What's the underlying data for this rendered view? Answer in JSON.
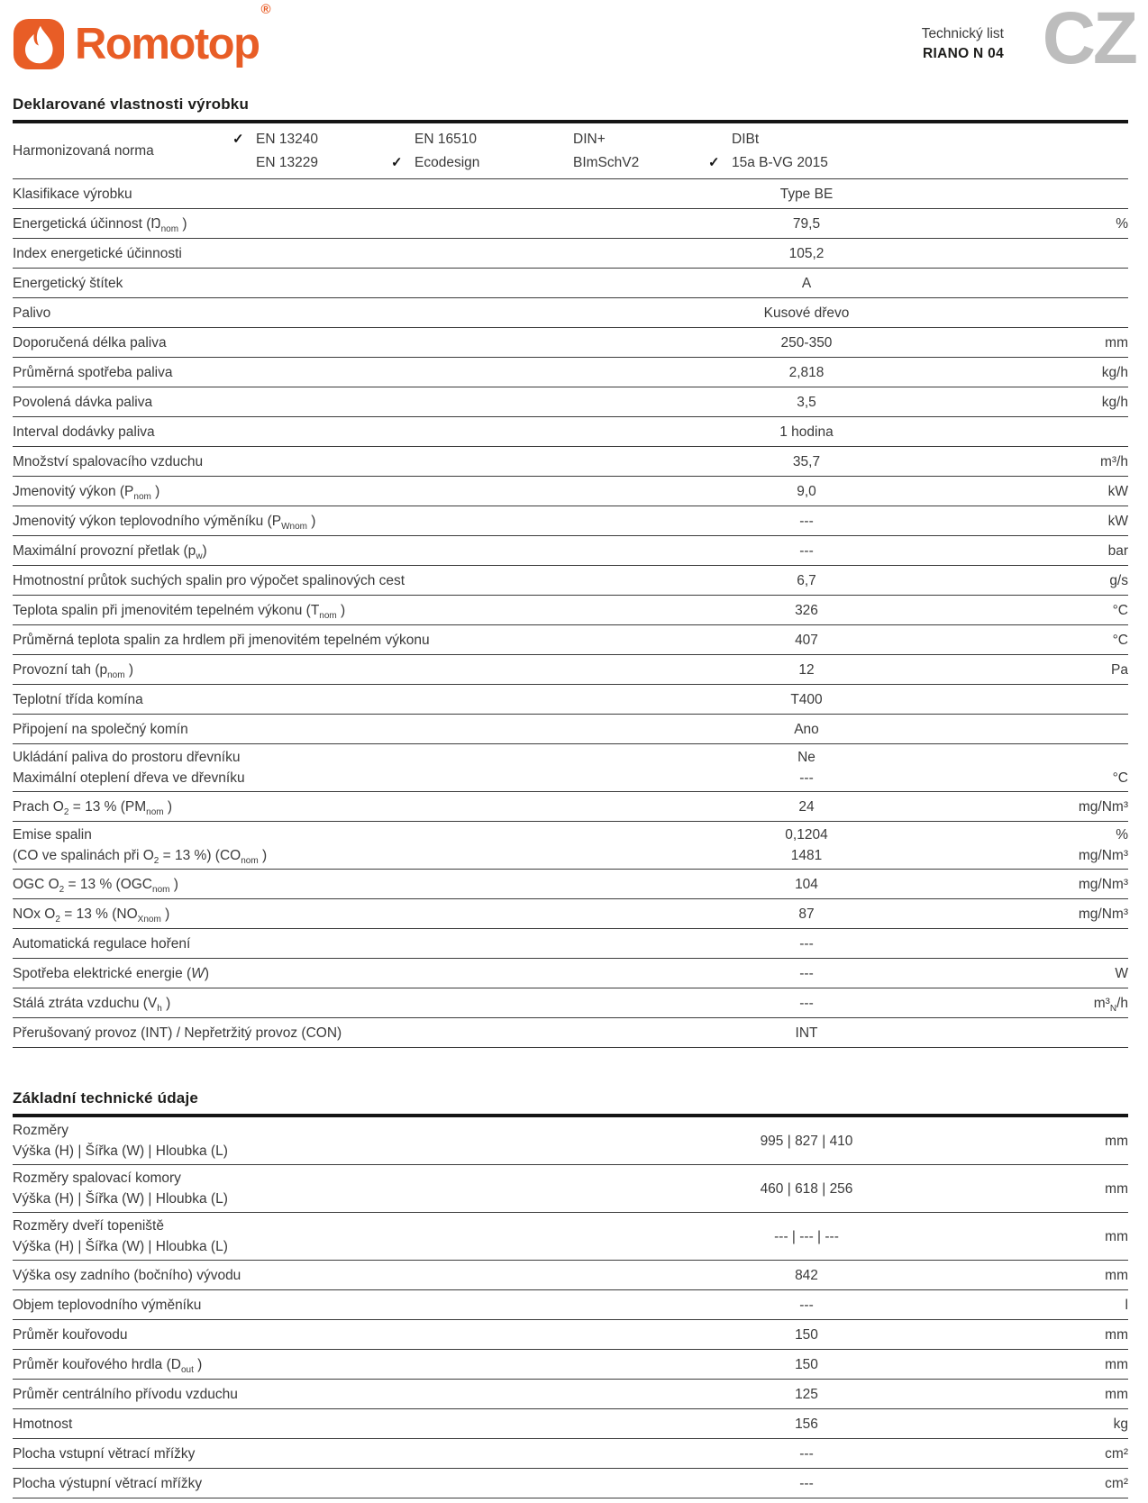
{
  "header": {
    "logo_text": "Romotop",
    "logo_reg": "®",
    "doc_type": "Technický list",
    "product": "RIANO N 04",
    "lang_code": "CZ",
    "brand_color": "#e85d26",
    "lang_color": "#bdbdbd",
    "flame_icon": "flame-icon"
  },
  "sections": [
    {
      "title": "Deklarované vlastnosti výrobku",
      "norms_row": {
        "label": "Harmonizovaná norma",
        "check_glyph": "✓",
        "columns": [
          {
            "items": [
              {
                "text": "EN 13240",
                "checked": true
              },
              {
                "text": "EN 13229",
                "checked": false
              }
            ]
          },
          {
            "items": [
              {
                "text": "EN 16510",
                "checked": false
              },
              {
                "text": "Ecodesign",
                "checked": true
              }
            ]
          },
          {
            "items": [
              {
                "text": "DIN+",
                "checked": false
              },
              {
                "text": "BImSchV2",
                "checked": false
              }
            ]
          },
          {
            "items": [
              {
                "text": "DIBt",
                "checked": false
              },
              {
                "text": "15a B-VG 2015",
                "checked": true
              }
            ]
          }
        ]
      },
      "rows": [
        {
          "label": [
            "Klasifikace výrobku"
          ],
          "value": [
            "Type BE"
          ],
          "unit": [
            ""
          ]
        },
        {
          "label": [
            "Energetická účinnost (Ŋ<sub>nom</sub> )"
          ],
          "value": [
            "79,5"
          ],
          "unit": [
            "%"
          ]
        },
        {
          "label": [
            "Index energetické účinnosti"
          ],
          "value": [
            "105,2"
          ],
          "unit": [
            ""
          ]
        },
        {
          "label": [
            "Energetický štítek"
          ],
          "value": [
            "A"
          ],
          "unit": [
            ""
          ]
        },
        {
          "label": [
            "Palivo"
          ],
          "value": [
            "Kusové dřevo"
          ],
          "unit": [
            ""
          ]
        },
        {
          "label": [
            "Doporučená délka paliva"
          ],
          "value": [
            "250-350"
          ],
          "unit": [
            "mm"
          ]
        },
        {
          "label": [
            "Průměrná spotřeba paliva"
          ],
          "value": [
            "2,818"
          ],
          "unit": [
            "kg/h"
          ]
        },
        {
          "label": [
            "Povolená dávka paliva"
          ],
          "value": [
            "3,5"
          ],
          "unit": [
            "kg/h"
          ]
        },
        {
          "label": [
            "Interval dodávky paliva"
          ],
          "value": [
            "1 hodina"
          ],
          "unit": [
            ""
          ]
        },
        {
          "label": [
            "Množství spalovacího vzduchu"
          ],
          "value": [
            "35,7"
          ],
          "unit": [
            "m³/h"
          ]
        },
        {
          "label": [
            "Jmenovitý výkon (P<sub>nom</sub> )"
          ],
          "value": [
            "9,0"
          ],
          "unit": [
            "kW"
          ]
        },
        {
          "label": [
            "Jmenovitý výkon teplovodního výměníku (P<sub>Wnom</sub> )"
          ],
          "value": [
            "---"
          ],
          "unit": [
            "kW"
          ]
        },
        {
          "label": [
            "Maximální provozní přetlak (p<sub>w</sub>)"
          ],
          "value": [
            "---"
          ],
          "unit": [
            "bar"
          ]
        },
        {
          "label": [
            "Hmotnostní průtok suchých spalin pro výpočet spalinových cest"
          ],
          "value": [
            "6,7"
          ],
          "unit": [
            "g/s"
          ]
        },
        {
          "label": [
            "Teplota spalin při jmenovitém tepelném výkonu (T<sub>nom</sub> )"
          ],
          "value": [
            "326"
          ],
          "unit": [
            "°C"
          ]
        },
        {
          "label": [
            "Průměrná teplota spalin za hrdlem při jmenovitém tepelném výkonu"
          ],
          "value": [
            "407"
          ],
          "unit": [
            "°C"
          ]
        },
        {
          "label": [
            "Provozní tah (p<sub>nom</sub> )"
          ],
          "value": [
            "12"
          ],
          "unit": [
            "Pa"
          ]
        },
        {
          "label": [
            "Teplotní třída komína"
          ],
          "value": [
            "T400"
          ],
          "unit": [
            ""
          ]
        },
        {
          "label": [
            "Připojení na společný komín"
          ],
          "value": [
            "Ano"
          ],
          "unit": [
            ""
          ]
        },
        {
          "label": [
            "Ukládání paliva do prostoru dřevníku",
            "Maximální oteplení dřeva ve dřevníku"
          ],
          "value": [
            "Ne",
            "---"
          ],
          "unit": [
            "",
            "°C"
          ]
        },
        {
          "label": [
            "Prach O<sub>2</sub> = 13 % (PM<sub>nom</sub> )"
          ],
          "value": [
            "24"
          ],
          "unit": [
            "mg/Nm³"
          ]
        },
        {
          "label": [
            "Emise spalin",
            "(CO ve spalinách při O<sub>2</sub> = 13 %) (CO<sub>nom</sub> )"
          ],
          "value": [
            "0,1204",
            "1481"
          ],
          "unit": [
            "%",
            "mg/Nm³"
          ]
        },
        {
          "label": [
            "OGC O<sub>2</sub> = 13 % (OGC<sub>nom</sub> )"
          ],
          "value": [
            "104"
          ],
          "unit": [
            "mg/Nm³"
          ]
        },
        {
          "label": [
            "NOx O<sub>2</sub> = 13 % (NO<sub>Xnom</sub> )"
          ],
          "value": [
            "87"
          ],
          "unit": [
            "mg/Nm³"
          ]
        },
        {
          "label": [
            "Automatická regulace hoření"
          ],
          "value": [
            "---"
          ],
          "unit": [
            ""
          ]
        },
        {
          "label": [
            "Spotřeba elektrické energie (<i>W</i>)"
          ],
          "value": [
            "---"
          ],
          "unit": [
            "W"
          ]
        },
        {
          "label": [
            "Stálá ztráta vzduchu (V<sub>h</sub> )"
          ],
          "value": [
            "---"
          ],
          "unit": [
            "m³<sub>N</sub>/h"
          ]
        },
        {
          "label": [
            "Přerušovaný provoz (INT) / Nepřetržitý provoz (CON)"
          ],
          "value": [
            "INT"
          ],
          "unit": [
            ""
          ]
        }
      ]
    },
    {
      "title": "Základní technické údaje",
      "rows": [
        {
          "label": [
            "Rozměry",
            "Výška (H) | Šířka (W) | Hloubka (L)"
          ],
          "value": [
            "995 | 827 | 410"
          ],
          "unit": [
            "mm"
          ]
        },
        {
          "label": [
            "Rozměry spalovací komory",
            "Výška (H) | Šířka (W) | Hloubka (L)"
          ],
          "value": [
            "460 | 618 | 256"
          ],
          "unit": [
            "mm"
          ]
        },
        {
          "label": [
            "Rozměry dveří topeniště",
            "Výška (H) | Šířka (W) | Hloubka (L)"
          ],
          "value": [
            "--- | --- | ---"
          ],
          "unit": [
            "mm"
          ]
        },
        {
          "label": [
            "Výška osy zadního (bočního) vývodu"
          ],
          "value": [
            "842"
          ],
          "unit": [
            "mm"
          ]
        },
        {
          "label": [
            "Objem teplovodního výměníku"
          ],
          "value": [
            "---"
          ],
          "unit": [
            "l"
          ]
        },
        {
          "label": [
            "Průměr kouřovodu"
          ],
          "value": [
            "150"
          ],
          "unit": [
            "mm"
          ]
        },
        {
          "label": [
            "Průměr kouřového hrdla (D<sub>out</sub> )"
          ],
          "value": [
            "150"
          ],
          "unit": [
            "mm"
          ]
        },
        {
          "label": [
            "Průměr centrálního přívodu vzduchu"
          ],
          "value": [
            "125"
          ],
          "unit": [
            "mm"
          ]
        },
        {
          "label": [
            "Hmotnost"
          ],
          "value": [
            "156"
          ],
          "unit": [
            "kg"
          ]
        },
        {
          "label": [
            "Plocha vstupní větrací mřížky"
          ],
          "value": [
            "---"
          ],
          "unit": [
            "cm²"
          ]
        },
        {
          "label": [
            "Plocha výstupní větrací mřížky"
          ],
          "value": [
            "---"
          ],
          "unit": [
            "cm²"
          ]
        }
      ]
    }
  ]
}
